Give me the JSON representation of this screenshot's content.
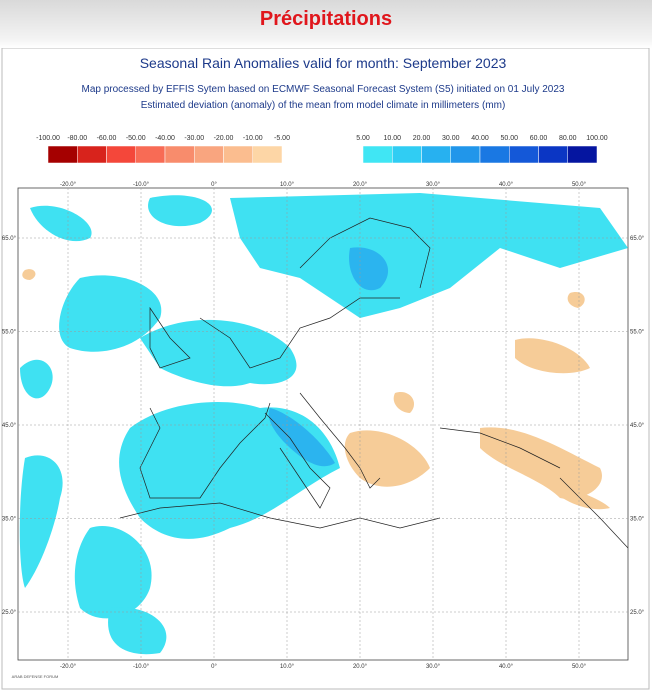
{
  "header": {
    "title": "Précipitations"
  },
  "map": {
    "title": "Seasonal Rain Anomalies valid for month: September 2023",
    "subtitle_1": "Map processed by EFFIS Sytem based on ECMWF Seasonal Forecast System (S5) initiated on 01 July 2023",
    "subtitle_2": "Estimated deviation (anomaly) of the mean from model climate in millimeters (mm)",
    "legend": {
      "negative_labels": [
        "-100.00",
        "-80.00",
        "-60.00",
        "-50.00",
        "-40.00",
        "-30.00",
        "-20.00",
        "-10.00",
        "-5.00"
      ],
      "negative_colors": [
        "#a50000",
        "#d8231c",
        "#f4473a",
        "#f86b55",
        "#f88c6c",
        "#f9a57f",
        "#fbbd8f",
        "#fdd6a6"
      ],
      "positive_labels": [
        "5.00",
        "10.00",
        "20.00",
        "30.00",
        "40.00",
        "50.00",
        "60.00",
        "80.00",
        "100.00"
      ],
      "positive_colors": [
        "#40e6f4",
        "#30cdf3",
        "#27b1f0",
        "#2196ea",
        "#1a78e3",
        "#1458d8",
        "#0b36c4",
        "#0515a0"
      ]
    },
    "lon_labels": [
      "-20.0°",
      "-10.0°",
      "0°",
      "10.0°",
      "20.0°",
      "30.0°",
      "40.0°",
      "50.0°"
    ],
    "lat_labels": [
      "65.0°",
      "55.0°",
      "45.0°",
      "35.0°",
      "25.0°"
    ],
    "watermark": "ARAB DEFENSE FORUM"
  }
}
